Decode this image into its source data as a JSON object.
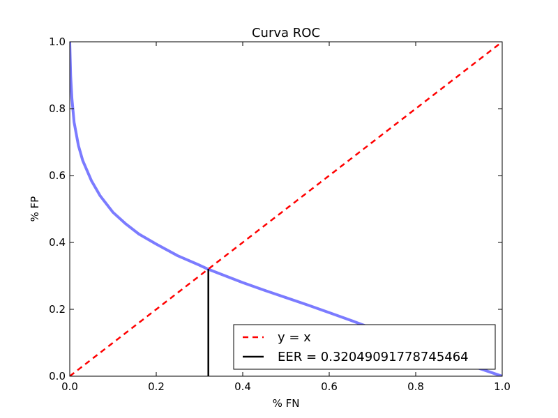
{
  "chart_data": {
    "type": "line",
    "title": "Curva ROC",
    "xlabel": "% FN",
    "ylabel": "% FP",
    "xlim": [
      0.0,
      1.0
    ],
    "ylim": [
      0.0,
      1.0
    ],
    "xticks": [
      "0.0",
      "0.2",
      "0.4",
      "0.6",
      "0.8",
      "1.0"
    ],
    "yticks": [
      "0.0",
      "0.2",
      "0.4",
      "0.6",
      "0.8",
      "1.0"
    ],
    "grid": false,
    "legend_position": "bottom-right",
    "series": [
      {
        "kind": "roc-curve",
        "color": "#7b7bff",
        "x": [
          0.0,
          0.002,
          0.005,
          0.01,
          0.02,
          0.03,
          0.05,
          0.07,
          0.1,
          0.13,
          0.16,
          0.2,
          0.25,
          0.3,
          0.32,
          0.35,
          0.4,
          0.45,
          0.5,
          0.55,
          0.6,
          0.65,
          0.7,
          0.75,
          0.8,
          0.85,
          0.9,
          0.95,
          1.0
        ],
        "y": [
          1.0,
          0.9,
          0.83,
          0.76,
          0.69,
          0.645,
          0.585,
          0.54,
          0.49,
          0.455,
          0.425,
          0.395,
          0.36,
          0.332,
          0.32,
          0.305,
          0.28,
          0.257,
          0.235,
          0.213,
          0.19,
          0.167,
          0.143,
          0.12,
          0.095,
          0.07,
          0.046,
          0.022,
          0.0
        ]
      },
      {
        "kind": "identity",
        "name": "y = x",
        "color": "#ff0000",
        "x": [
          0.0,
          1.0
        ],
        "y": [
          0.0,
          1.0
        ]
      },
      {
        "kind": "eer-marker",
        "name": "EER = 0.32049091778745464",
        "color": "#000000",
        "x": [
          0.3205,
          0.3205
        ],
        "y": [
          0.0,
          0.3205
        ]
      }
    ],
    "legend": [
      "y = x",
      "EER = 0.32049091778745464"
    ]
  }
}
